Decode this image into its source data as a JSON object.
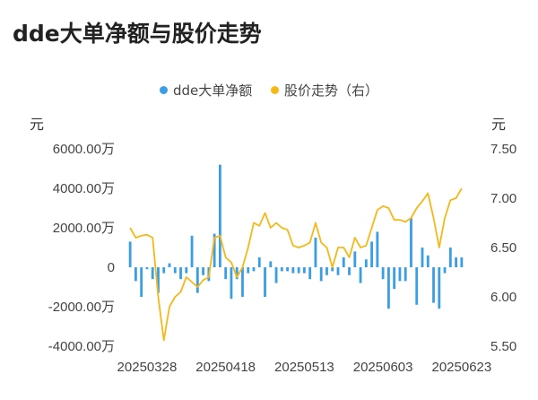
{
  "title": "dde大单净额与股价走势",
  "legend": {
    "bar_label": "dde大单净额",
    "line_label": "股价走势（右）",
    "bar_color": "#3a9ee4",
    "line_color": "#f5b819"
  },
  "units": {
    "left": "元",
    "right": "元"
  },
  "chart_data": {
    "type": "bar+line",
    "left_axis": {
      "ticks": [
        "6000.00万",
        "4000.00万",
        "2000.00万",
        "0",
        "-2000.00万",
        "-4000.00万"
      ],
      "range": [
        -4000,
        6000
      ]
    },
    "right_axis": {
      "ticks": [
        "7.50",
        "7.00",
        "6.50",
        "6.00",
        "5.50"
      ],
      "range": [
        5.5,
        7.5
      ]
    },
    "x_ticks": [
      {
        "label": "20250328",
        "index": 3
      },
      {
        "label": "20250418",
        "index": 17
      },
      {
        "label": "20250513",
        "index": 31
      },
      {
        "label": "20250603",
        "index": 45
      },
      {
        "label": "20250623",
        "index": 59
      }
    ],
    "series": [
      {
        "name": "dde大单净额",
        "kind": "bar",
        "values": [
          1300,
          -700,
          -1500,
          -100,
          -600,
          -1300,
          -300,
          200,
          -300,
          -600,
          -300,
          1600,
          -1300,
          -400,
          -700,
          1700,
          5200,
          -600,
          -1600,
          -600,
          -1500,
          -300,
          -200,
          500,
          -1500,
          300,
          -800,
          -200,
          -200,
          -300,
          -300,
          -300,
          -600,
          1500,
          -700,
          -400,
          -200,
          -400,
          500,
          -400,
          800,
          -800,
          400,
          1300,
          1800,
          -600,
          -2100,
          -1100,
          -700,
          -700,
          2500,
          -1900,
          1000,
          600,
          -1800,
          -2100,
          -300,
          1000,
          500,
          500
        ]
      },
      {
        "name": "股价走势（右）",
        "kind": "line",
        "values": [
          6.7,
          6.6,
          6.62,
          6.63,
          6.6,
          6.0,
          5.56,
          5.9,
          6.0,
          6.05,
          6.2,
          6.15,
          6.1,
          6.17,
          6.2,
          6.6,
          6.62,
          6.4,
          6.35,
          6.2,
          6.3,
          6.5,
          6.75,
          6.72,
          6.85,
          6.7,
          6.75,
          6.7,
          6.68,
          6.52,
          6.5,
          6.52,
          6.55,
          6.75,
          6.55,
          6.5,
          6.3,
          6.5,
          6.5,
          6.4,
          6.6,
          6.5,
          6.52,
          6.7,
          6.88,
          6.92,
          6.9,
          6.78,
          6.78,
          6.76,
          6.8,
          6.9,
          6.97,
          7.05,
          6.8,
          6.5,
          6.8,
          6.98,
          7.0,
          7.1
        ]
      }
    ]
  }
}
